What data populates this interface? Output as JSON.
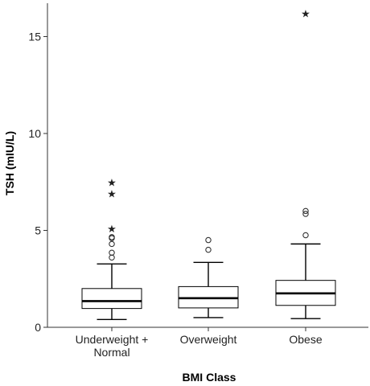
{
  "chart_data": {
    "type": "boxplot",
    "xlabel": "BMI Class",
    "ylabel": "TSH (mIU/L)",
    "ylim": [
      0,
      16.5
    ],
    "yticks": [
      0,
      5,
      10,
      15
    ],
    "categories": [
      [
        "Underweight +",
        "Normal"
      ],
      [
        "Overweight"
      ],
      [
        "Obese"
      ]
    ],
    "boxes": [
      {
        "whisker_low": 0.4,
        "q1": 0.97,
        "median": 1.35,
        "q3": 2.0,
        "whisker_high": 3.27,
        "outliers": [
          3.6,
          3.85,
          4.3,
          4.6,
          4.65
        ],
        "extremes": [
          5.1,
          6.9,
          7.5
        ]
      },
      {
        "whisker_low": 0.5,
        "q1": 1.0,
        "median": 1.5,
        "q3": 2.1,
        "whisker_high": 3.35,
        "outliers": [
          4.0,
          4.5
        ],
        "extremes": []
      },
      {
        "whisker_low": 0.45,
        "q1": 1.13,
        "median": 1.75,
        "q3": 2.42,
        "whisker_high": 4.3,
        "outliers": [
          4.75,
          5.85,
          6.0
        ],
        "extremes": [
          16.2
        ]
      }
    ],
    "grid": false,
    "legend": "none"
  }
}
